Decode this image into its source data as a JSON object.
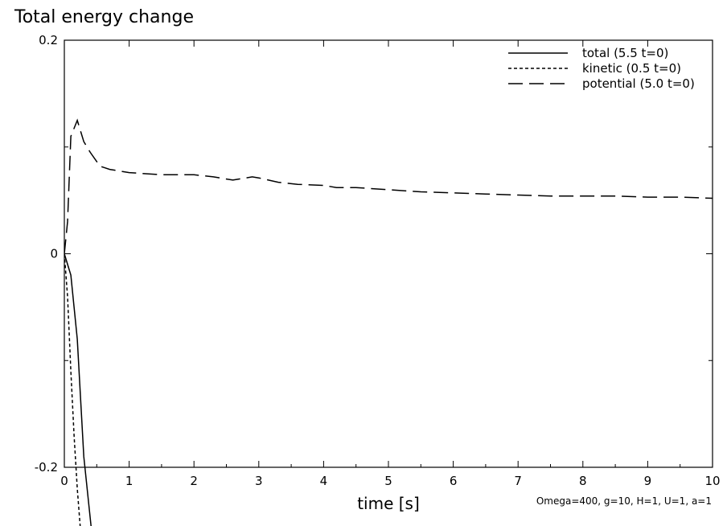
{
  "chart_data": {
    "type": "line",
    "title": "Total energy change",
    "xlabel": "time [s]",
    "ylabel": "",
    "xlim": [
      0,
      10
    ],
    "ylim": [
      -0.2,
      0.2
    ],
    "x_ticks": [
      "0",
      "1",
      "2",
      "3",
      "4",
      "5",
      "6",
      "7",
      "8",
      "9",
      "10"
    ],
    "y_ticks": [
      "-0.2",
      "0",
      "0.2"
    ],
    "grid": false,
    "legend_position": "top-right",
    "annotation": "Omega=400, g=10, H=1, U=1, a=1",
    "series": [
      {
        "name": "total (5.5 t=0)",
        "style": "solid",
        "x": [
          0,
          0.1,
          0.2,
          0.3,
          0.42
        ],
        "y": [
          0,
          -0.02,
          -0.08,
          -0.19,
          -0.26
        ]
      },
      {
        "name": "kinetic (0.5 t=0)",
        "style": "dotted",
        "x": [
          0,
          0.05,
          0.1,
          0.15,
          0.2,
          0.25
        ],
        "y": [
          0,
          -0.04,
          -0.11,
          -0.17,
          -0.22,
          -0.26
        ]
      },
      {
        "name": "potential (5.0 t=0)",
        "style": "dashed",
        "x": [
          0,
          0.05,
          0.1,
          0.2,
          0.3,
          0.4,
          0.55,
          0.7,
          1.0,
          1.5,
          2.0,
          2.3,
          2.6,
          2.9,
          3.0,
          3.3,
          3.6,
          4.0,
          4.2,
          4.5,
          5.0,
          5.5,
          6.0,
          6.5,
          7.0,
          7.5,
          8.0,
          8.5,
          9.0,
          9.5,
          10.0
        ],
        "y": [
          0,
          0.03,
          0.11,
          0.125,
          0.105,
          0.095,
          0.082,
          0.079,
          0.076,
          0.074,
          0.074,
          0.072,
          0.069,
          0.072,
          0.071,
          0.067,
          0.065,
          0.064,
          0.062,
          0.062,
          0.06,
          0.058,
          0.057,
          0.056,
          0.055,
          0.054,
          0.054,
          0.054,
          0.053,
          0.053,
          0.052
        ]
      }
    ]
  }
}
